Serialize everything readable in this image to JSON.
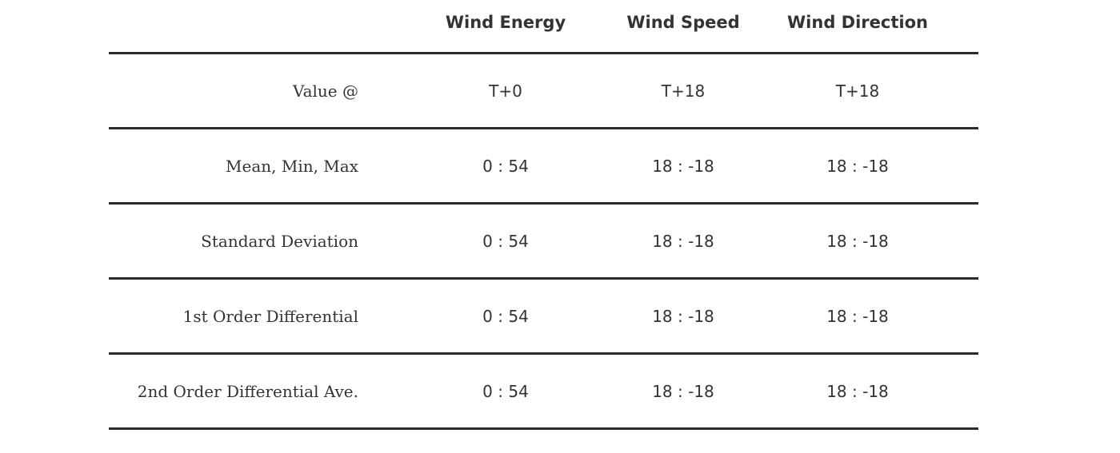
{
  "table": {
    "headers": [
      "Wind Energy",
      "Wind Speed",
      "Wind Direction"
    ],
    "rows": [
      {
        "label": "Value @",
        "values": [
          "T+0",
          "T+18",
          "T+18"
        ]
      },
      {
        "label": "Mean, Min, Max",
        "values": [
          "0 : 54",
          "18 : -18",
          "18 : -18"
        ]
      },
      {
        "label": "Standard Deviation",
        "values": [
          "0 : 54",
          "18 : -18",
          "18 : -18"
        ]
      },
      {
        "label": "1st Order Differential",
        "values": [
          "0 : 54",
          "18 : -18",
          "18 : -18"
        ]
      },
      {
        "label": "2nd Order Differential Ave.",
        "values": [
          "0 : 54",
          "18 : -18",
          "18 : -18"
        ]
      }
    ]
  }
}
